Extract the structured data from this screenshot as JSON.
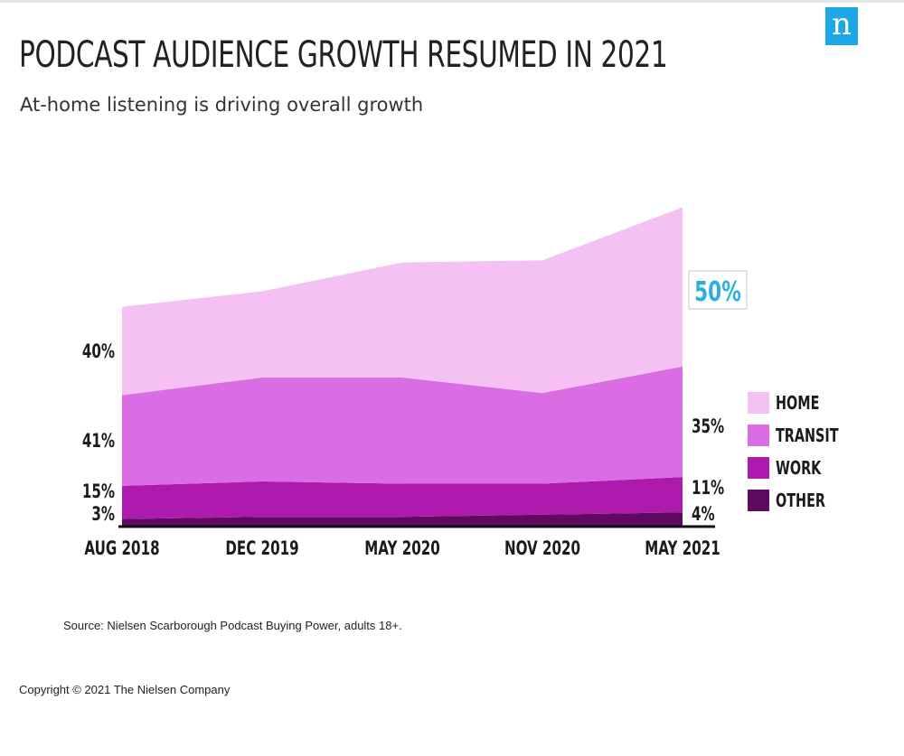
{
  "brand": {
    "logo_letter": "n",
    "logo_color": "#1ea7e8"
  },
  "title": "PODCAST AUDIENCE GROWTH RESUMED IN 2021",
  "subtitle": "At-home listening is driving overall growth",
  "chart_data": {
    "type": "area",
    "stacked": true,
    "categories": [
      "AUG 2018",
      "DEC 2019",
      "MAY 2020",
      "NOV 2020",
      "MAY 2021"
    ],
    "series": [
      {
        "name": "OTHER",
        "color": "#5e0a5e",
        "values": [
          3,
          4,
          4,
          5,
          6
        ]
      },
      {
        "name": "WORK",
        "color": "#ad1aad",
        "values": [
          15,
          16,
          15,
          14,
          16
        ]
      },
      {
        "name": "TRANSIT",
        "color": "#db6de4",
        "values": [
          41,
          47,
          48,
          41,
          50
        ]
      },
      {
        "name": "HOME",
        "color": "#f5c0f2",
        "values": [
          40,
          39,
          52,
          60,
          72
        ]
      }
    ],
    "ylim": [
      0,
      145
    ],
    "legend_position": "right",
    "grid": false,
    "start_labels": [
      "3%",
      "15%",
      "41%",
      "40%"
    ],
    "end_labels": [
      "4%",
      "11%",
      "35%",
      "50%"
    ],
    "highlight": {
      "label": "50%",
      "color": "#29aee8"
    }
  },
  "source": "Source: Nielsen Scarborough Podcast Buying Power, adults 18+.",
  "copyright": "Copyright © 2021 The Nielsen Company"
}
